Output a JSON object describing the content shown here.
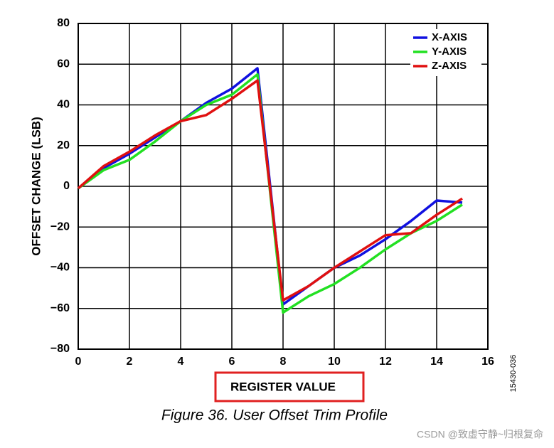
{
  "chart_data": {
    "type": "line",
    "x": [
      0,
      1,
      2,
      3,
      4,
      5,
      6,
      7,
      8,
      9,
      10,
      11,
      12,
      13,
      14,
      15
    ],
    "series": [
      {
        "name": "X-AXIS",
        "color": "#1010e0",
        "values": [
          -1,
          9,
          16,
          24,
          32,
          41,
          48,
          58,
          -58,
          -49,
          -40,
          -34,
          -26,
          -17,
          -7,
          -8
        ]
      },
      {
        "name": "Y-AXIS",
        "color": "#22e022",
        "values": [
          -1,
          8,
          13,
          22,
          32,
          40,
          45,
          55,
          -62,
          -54,
          -48,
          -40,
          -31,
          -23,
          -17,
          -9
        ]
      },
      {
        "name": "Z-AXIS",
        "color": "#e01010",
        "values": [
          -1,
          10,
          17,
          25,
          32,
          35,
          43,
          52,
          -56,
          -49,
          -40,
          -32,
          -24,
          -23,
          -14,
          -6
        ]
      }
    ],
    "xlabel": "REGISTER VALUE",
    "ylabel": "OFFSET CHANGE (LSB)",
    "caption": "Figure 36. User Offset Trim Profile",
    "figure_id": "15430-036",
    "watermark": "CSDN @致虚守静~归根复命",
    "xlim": [
      0,
      16
    ],
    "xticks": [
      0,
      2,
      4,
      6,
      8,
      10,
      12,
      14,
      16
    ],
    "ylim": [
      -80,
      80
    ],
    "yticks": [
      {
        "value": -80,
        "label": "−80"
      },
      {
        "value": -60,
        "label": "−60"
      },
      {
        "value": -40,
        "label": "−40"
      },
      {
        "value": -20,
        "label": "−20"
      },
      0,
      20,
      40,
      60,
      80
    ],
    "grid": true,
    "legend": "top-right"
  }
}
